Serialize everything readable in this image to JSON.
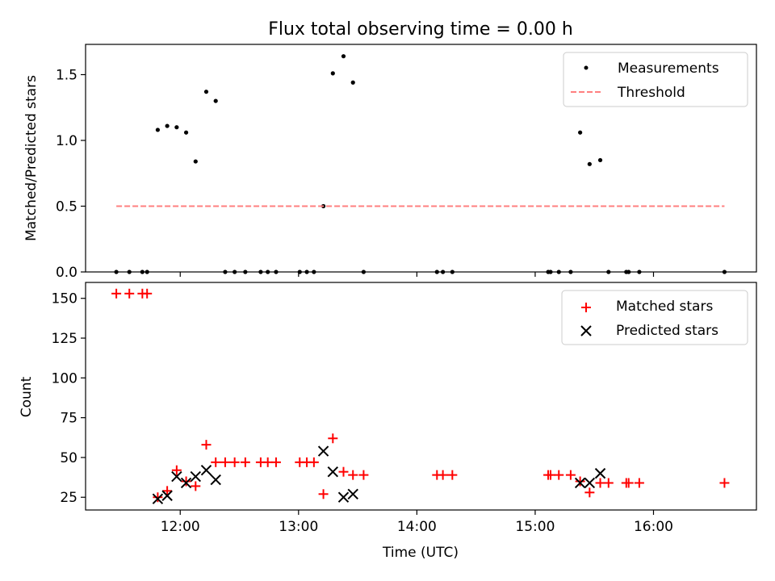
{
  "chart_data": [
    {
      "type": "scatter",
      "title": "Flux total observing time = 0.00 h",
      "xlabel": "",
      "ylabel": "Matched/Predicted stars",
      "xlim": [
        11.2,
        16.87
      ],
      "ylim": [
        0,
        1.73
      ],
      "yticks": [
        0.0,
        0.5,
        1.0,
        1.5
      ],
      "ytick_labels": [
        "0.0",
        "0.5",
        "1.0",
        "1.5"
      ],
      "legend_position": "top-right",
      "series": [
        {
          "name": "Measurements",
          "marker": "dot",
          "color": "#000000",
          "points": [
            [
              11.46,
              0
            ],
            [
              11.57,
              0
            ],
            [
              11.68,
              0
            ],
            [
              11.72,
              0
            ],
            [
              11.81,
              1.08
            ],
            [
              11.89,
              1.11
            ],
            [
              11.97,
              1.1
            ],
            [
              12.05,
              1.06
            ],
            [
              12.13,
              0.84
            ],
            [
              12.22,
              1.37
            ],
            [
              12.3,
              1.3
            ],
            [
              12.38,
              0
            ],
            [
              12.46,
              0
            ],
            [
              12.55,
              0
            ],
            [
              12.68,
              0
            ],
            [
              12.74,
              0
            ],
            [
              12.81,
              0
            ],
            [
              13.01,
              0
            ],
            [
              13.07,
              0
            ],
            [
              13.13,
              0
            ],
            [
              13.21,
              0.5
            ],
            [
              13.29,
              1.51
            ],
            [
              13.38,
              1.64
            ],
            [
              13.46,
              1.44
            ],
            [
              13.55,
              0
            ],
            [
              14.17,
              0
            ],
            [
              14.22,
              0
            ],
            [
              14.3,
              0
            ],
            [
              15.11,
              0
            ],
            [
              15.13,
              0
            ],
            [
              15.2,
              0
            ],
            [
              15.3,
              0
            ],
            [
              15.38,
              1.06
            ],
            [
              15.46,
              0.82
            ],
            [
              15.55,
              0.85
            ],
            [
              15.62,
              0
            ],
            [
              15.77,
              0
            ],
            [
              15.79,
              0
            ],
            [
              15.88,
              0
            ],
            [
              16.6,
              0
            ]
          ]
        },
        {
          "name": "Threshold",
          "style": "dashed",
          "color": "#ff7f7f",
          "x": [
            11.46,
            16.6
          ],
          "y": [
            0.5,
            0.5
          ]
        }
      ]
    },
    {
      "type": "scatter",
      "title": "",
      "xlabel": "Time (UTC)",
      "ylabel": "Count",
      "xlim": [
        11.2,
        16.87
      ],
      "ylim": [
        17,
        160
      ],
      "xticks": [
        12,
        13,
        14,
        15,
        16
      ],
      "xtick_labels": [
        "12:00",
        "13:00",
        "14:00",
        "15:00",
        "16:00"
      ],
      "yticks": [
        25,
        50,
        75,
        100,
        125,
        150
      ],
      "ytick_labels": [
        "25",
        "50",
        "75",
        "100",
        "125",
        "150"
      ],
      "legend_position": "top-right",
      "series": [
        {
          "name": "Matched stars",
          "marker": "plus",
          "color": "#ff0000",
          "points": [
            [
              11.46,
              153
            ],
            [
              11.57,
              153
            ],
            [
              11.68,
              153
            ],
            [
              11.72,
              153
            ],
            [
              11.81,
              25
            ],
            [
              11.89,
              29
            ],
            [
              11.97,
              42
            ],
            [
              12.05,
              35
            ],
            [
              12.13,
              32
            ],
            [
              12.22,
              58
            ],
            [
              12.3,
              47
            ],
            [
              12.38,
              47
            ],
            [
              12.46,
              47
            ],
            [
              12.55,
              47
            ],
            [
              12.68,
              47
            ],
            [
              12.74,
              47
            ],
            [
              12.81,
              47
            ],
            [
              13.01,
              47
            ],
            [
              13.07,
              47
            ],
            [
              13.13,
              47
            ],
            [
              13.21,
              27
            ],
            [
              13.29,
              62
            ],
            [
              13.38,
              41
            ],
            [
              13.46,
              39
            ],
            [
              13.55,
              39
            ],
            [
              14.17,
              39
            ],
            [
              14.22,
              39
            ],
            [
              14.3,
              39
            ],
            [
              15.11,
              39
            ],
            [
              15.13,
              39
            ],
            [
              15.2,
              39
            ],
            [
              15.3,
              39
            ],
            [
              15.38,
              35
            ],
            [
              15.46,
              28
            ],
            [
              15.55,
              34
            ],
            [
              15.62,
              34
            ],
            [
              15.77,
              34
            ],
            [
              15.79,
              34
            ],
            [
              15.88,
              34
            ],
            [
              16.6,
              34
            ]
          ]
        },
        {
          "name": "Predicted stars",
          "marker": "x",
          "color": "#000000",
          "points": [
            [
              11.81,
              24
            ],
            [
              11.89,
              26
            ],
            [
              11.97,
              38
            ],
            [
              12.05,
              34
            ],
            [
              12.13,
              38
            ],
            [
              12.22,
              42
            ],
            [
              12.3,
              36
            ],
            [
              13.21,
              54
            ],
            [
              13.29,
              41
            ],
            [
              13.38,
              25
            ],
            [
              13.46,
              27
            ],
            [
              15.38,
              34
            ],
            [
              15.46,
              34
            ],
            [
              15.55,
              40
            ]
          ]
        }
      ]
    }
  ]
}
